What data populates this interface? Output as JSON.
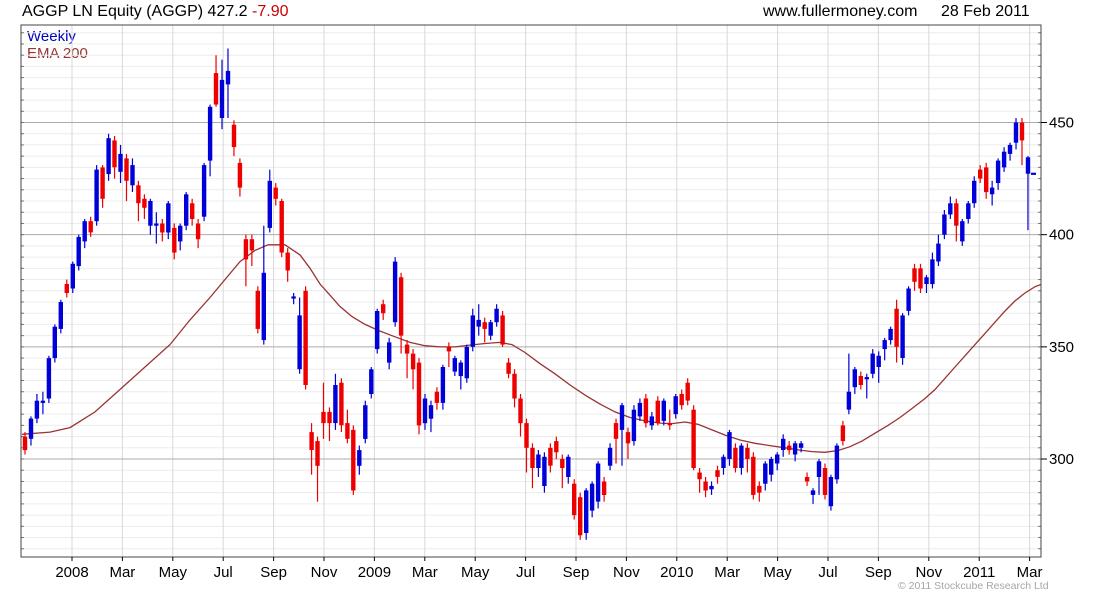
{
  "header": {
    "title_main": "AGGP LN Equity (AGGP) 427.2",
    "title_change": "-7.90",
    "site": "www.fullermoney.com",
    "date": "28 Feb 2011"
  },
  "legend": {
    "series": "Weekly",
    "overlay": "EMA 200"
  },
  "footer": {
    "copyright": "© 2011 Stockcube Research Ltd"
  },
  "colors": {
    "up": "#0000d9",
    "down": "#ee0000",
    "ema": "#993333",
    "legend_weekly": "#0000bb",
    "grid_minor": "#ececec",
    "grid_major": "#ababab",
    "grid_vertical": "#d9d9d9",
    "border": "#444444",
    "change_text": "#cc0000",
    "copyright_text": "#a6a6a6"
  },
  "chart_data": {
    "type": "candlestick",
    "period": "weekly",
    "title": "AGGP LN Equity (AGGP)",
    "last_price": 427.2,
    "change": -7.9,
    "date": "28 Feb 2011",
    "ylabel": "",
    "xlabel": "",
    "y_ticks": [
      450,
      400,
      350,
      300
    ],
    "y_minor_step": 5,
    "y_range": [
      257,
      492
    ],
    "x_tick_labels": [
      "2008",
      "Mar",
      "May",
      "Jul",
      "Sep",
      "Nov",
      "2009",
      "Mar",
      "May",
      "Jul",
      "Sep",
      "Nov",
      "2010",
      "Mar",
      "May",
      "Jul",
      "Sep",
      "Nov",
      "2011",
      "Mar"
    ],
    "weeks": [
      [
        310,
        312,
        302,
        304,
        0
      ],
      [
        309,
        319,
        306,
        318,
        1
      ],
      [
        318,
        329,
        316,
        326,
        1
      ],
      [
        325,
        330,
        320,
        326,
        1
      ],
      [
        327,
        346,
        325,
        345,
        1
      ],
      [
        345,
        360,
        343,
        359,
        1
      ],
      [
        358,
        371,
        356,
        370,
        1
      ],
      [
        378,
        380,
        372,
        374,
        0
      ],
      [
        376,
        388,
        374,
        387,
        1
      ],
      [
        386,
        400,
        384,
        399,
        1
      ],
      [
        397,
        407,
        394,
        406,
        1
      ],
      [
        406,
        408,
        399,
        401,
        0
      ],
      [
        406,
        431,
        404,
        429,
        1
      ],
      [
        430,
        431,
        412,
        416,
        0
      ],
      [
        427,
        445,
        424,
        443,
        1
      ],
      [
        442,
        444,
        425,
        430,
        0
      ],
      [
        428,
        440,
        423,
        436,
        1
      ],
      [
        434,
        436,
        415,
        424,
        0
      ],
      [
        422,
        434,
        419,
        431,
        1
      ],
      [
        422,
        424,
        406,
        414,
        0
      ],
      [
        416,
        418,
        407,
        412,
        0
      ],
      [
        404,
        416,
        400,
        415,
        1
      ],
      [
        404,
        410,
        396,
        405,
        1
      ],
      [
        405,
        407,
        397,
        401,
        0
      ],
      [
        401,
        415,
        398,
        414,
        1
      ],
      [
        403,
        405,
        389,
        392,
        0
      ],
      [
        397,
        405,
        393,
        404,
        1
      ],
      [
        404,
        419,
        402,
        418,
        1
      ],
      [
        414,
        416,
        404,
        407,
        0
      ],
      [
        405,
        407,
        394,
        398,
        0
      ],
      [
        408,
        432,
        406,
        431,
        1
      ],
      [
        433,
        458,
        426,
        457,
        1
      ],
      [
        472,
        480,
        457,
        458,
        0
      ],
      [
        452,
        478,
        447,
        469,
        1
      ],
      [
        467,
        483,
        452,
        473,
        1
      ],
      [
        449,
        451,
        435,
        439,
        0
      ],
      [
        432,
        434,
        417,
        421,
        0
      ],
      [
        398,
        400,
        377,
        389,
        0
      ],
      [
        398,
        400,
        386,
        393,
        0
      ],
      [
        375,
        377,
        356,
        358,
        0
      ],
      [
        353,
        404,
        351,
        383,
        1
      ],
      [
        403,
        429,
        401,
        424,
        1
      ],
      [
        421,
        423,
        413,
        416,
        0
      ],
      [
        415,
        416,
        390,
        392,
        0
      ],
      [
        392,
        394,
        379,
        384,
        0
      ],
      [
        371.5,
        374,
        369,
        372.5,
        1
      ],
      [
        340,
        372,
        338,
        364,
        1
      ],
      [
        375,
        377,
        331,
        333,
        0
      ],
      [
        312,
        316,
        293,
        304,
        0
      ],
      [
        308,
        310,
        281,
        297,
        0
      ],
      [
        321,
        334,
        309,
        316,
        0
      ],
      [
        321,
        323,
        308,
        316,
        0
      ],
      [
        316,
        338,
        313,
        333,
        1
      ],
      [
        334,
        336,
        312,
        315,
        0
      ],
      [
        316,
        322,
        307,
        309,
        0
      ],
      [
        313,
        315,
        284,
        286,
        0
      ],
      [
        297,
        306,
        293,
        304,
        1
      ],
      [
        309,
        326,
        307,
        324,
        1
      ],
      [
        329,
        341,
        327,
        340,
        1
      ],
      [
        349,
        367,
        347,
        366,
        1
      ],
      [
        369,
        371,
        362,
        365,
        0
      ],
      [
        343,
        354,
        340,
        352,
        1
      ],
      [
        361,
        390,
        359,
        388,
        1
      ],
      [
        381,
        383,
        347,
        355,
        0
      ],
      [
        351,
        353,
        336,
        347,
        0
      ],
      [
        347,
        349,
        331,
        340,
        0
      ],
      [
        343,
        345,
        311,
        315,
        0
      ],
      [
        316,
        329,
        313,
        327,
        1
      ],
      [
        318,
        326,
        312,
        324,
        1
      ],
      [
        330,
        332,
        322,
        325,
        0
      ],
      [
        325,
        342,
        322,
        341,
        1
      ],
      [
        350,
        352,
        341,
        348,
        0
      ],
      [
        339,
        346,
        337,
        345,
        1
      ],
      [
        337,
        344,
        331,
        343,
        1
      ],
      [
        336,
        351,
        334,
        350,
        1
      ],
      [
        350,
        367,
        348,
        364,
        1
      ],
      [
        359,
        369,
        355,
        362,
        1
      ],
      [
        361,
        363,
        352,
        358,
        0
      ],
      [
        355,
        362,
        353,
        361,
        1
      ],
      [
        361,
        369,
        359,
        367,
        1
      ],
      [
        364,
        366,
        350,
        351,
        0
      ],
      [
        343,
        345,
        336,
        338,
        0
      ],
      [
        338,
        340,
        323,
        327,
        0
      ],
      [
        327,
        329,
        310,
        316,
        0
      ],
      [
        316,
        318,
        294,
        305,
        0
      ],
      [
        305,
        307,
        287,
        296,
        0
      ],
      [
        296,
        304,
        292,
        302,
        1
      ],
      [
        288,
        303,
        285,
        301,
        1
      ],
      [
        305,
        307,
        294,
        297,
        0
      ],
      [
        308,
        310,
        300,
        303,
        0
      ],
      [
        300,
        302,
        287,
        296,
        0
      ],
      [
        292,
        302,
        289,
        301,
        1
      ],
      [
        289,
        291,
        273,
        275,
        0
      ],
      [
        283,
        285,
        264,
        266,
        0
      ],
      [
        267,
        287,
        264,
        286,
        1
      ],
      [
        277,
        290,
        274,
        289,
        1
      ],
      [
        281,
        299,
        278,
        298,
        1
      ],
      [
        290,
        292,
        281,
        284,
        0
      ],
      [
        297,
        307,
        295,
        305,
        1
      ],
      [
        316,
        318,
        298,
        309,
        0
      ],
      [
        313,
        325,
        297,
        324,
        1
      ],
      [
        312,
        314,
        300,
        307,
        0
      ],
      [
        308,
        324,
        306,
        322,
        1
      ],
      [
        319,
        327,
        317,
        325,
        1
      ],
      [
        327,
        329,
        314,
        316,
        0
      ],
      [
        315,
        321,
        313,
        319,
        1
      ],
      [
        326,
        328,
        315,
        316,
        0
      ],
      [
        317,
        327,
        315,
        326,
        1
      ],
      [
        316,
        322,
        313,
        315,
        0
      ],
      [
        320,
        329,
        318,
        328,
        1
      ],
      [
        329,
        331,
        322,
        324,
        0
      ],
      [
        334,
        336,
        324,
        326,
        0
      ],
      [
        322,
        324,
        295,
        296,
        0
      ],
      [
        294,
        296,
        285,
        291,
        0
      ],
      [
        290,
        292,
        283,
        286,
        0
      ],
      [
        286.5,
        290,
        284,
        288,
        1
      ],
      [
        295,
        297,
        289,
        292,
        0
      ],
      [
        296,
        302,
        293,
        301,
        1
      ],
      [
        300,
        313,
        297,
        312,
        1
      ],
      [
        305,
        307,
        294,
        296,
        0
      ],
      [
        296,
        307,
        293,
        306,
        1
      ],
      [
        305,
        307,
        294,
        300,
        0
      ],
      [
        301,
        303,
        282,
        284,
        0
      ],
      [
        288,
        290,
        281,
        285,
        0
      ],
      [
        289,
        299,
        286,
        298,
        1
      ],
      [
        293,
        301,
        290,
        300,
        1
      ],
      [
        298,
        303,
        295,
        302,
        1
      ],
      [
        304,
        311,
        301,
        309,
        1
      ],
      [
        306,
        308,
        302,
        304,
        0
      ],
      [
        302,
        308,
        299,
        307,
        1
      ],
      [
        305,
        308,
        303,
        307,
        1
      ],
      [
        292,
        294,
        288,
        290,
        0
      ],
      [
        284,
        287,
        280,
        286,
        1
      ],
      [
        292,
        300,
        284,
        299,
        1
      ],
      [
        296,
        298,
        282,
        284,
        0
      ],
      [
        279,
        293,
        277,
        292,
        1
      ],
      [
        291,
        307,
        289,
        306,
        1
      ],
      [
        315,
        317,
        306,
        308,
        0
      ],
      [
        322,
        347,
        320,
        330,
        1
      ],
      [
        332,
        341,
        329,
        340,
        1
      ],
      [
        337,
        339,
        331,
        333,
        0
      ],
      [
        335.5,
        338,
        327,
        336.5,
        1
      ],
      [
        338,
        349,
        336,
        347,
        1
      ],
      [
        341,
        348,
        334,
        346,
        1
      ],
      [
        349,
        354,
        344,
        353,
        1
      ],
      [
        353,
        359,
        351,
        358,
        1
      ],
      [
        367,
        371,
        343,
        350,
        0
      ],
      [
        345,
        365,
        342,
        364,
        1
      ],
      [
        366,
        377,
        364,
        376,
        1
      ],
      [
        385,
        387,
        375,
        379,
        0
      ],
      [
        385,
        387,
        374,
        376,
        0
      ],
      [
        378,
        382,
        374,
        381,
        1
      ],
      [
        378,
        392,
        376,
        389,
        1
      ],
      [
        388,
        400,
        386,
        396,
        1
      ],
      [
        400,
        411,
        398,
        409,
        1
      ],
      [
        409,
        417,
        407,
        414,
        1
      ],
      [
        414,
        416,
        397,
        404,
        0
      ],
      [
        397,
        407,
        395,
        406,
        1
      ],
      [
        407,
        415,
        405,
        414,
        1
      ],
      [
        414,
        426,
        412,
        424,
        1
      ],
      [
        429,
        431,
        423,
        425,
        0
      ],
      [
        430,
        432,
        416,
        419,
        0
      ],
      [
        418,
        424,
        413,
        421,
        1
      ],
      [
        423,
        434,
        420,
        433,
        1
      ],
      [
        430,
        439,
        428,
        437,
        1
      ],
      [
        436,
        441,
        433,
        440,
        1
      ],
      [
        441,
        452,
        438,
        450,
        1
      ],
      [
        450,
        452,
        431,
        442,
        0
      ],
      [
        434.5,
        435,
        402,
        427.2,
        1
      ]
    ],
    "ema": {
      "label": "EMA 200",
      "points": [
        [
          22,
          311
        ],
        [
          50,
          312
        ],
        [
          70,
          314
        ],
        [
          95,
          321
        ],
        [
          120,
          331
        ],
        [
          145,
          341
        ],
        [
          170,
          351
        ],
        [
          190,
          362
        ],
        [
          210,
          372
        ],
        [
          225,
          380
        ],
        [
          240,
          388
        ],
        [
          255,
          393
        ],
        [
          268,
          395.5
        ],
        [
          285,
          395.5
        ],
        [
          300,
          391
        ],
        [
          310,
          385
        ],
        [
          320,
          378
        ],
        [
          330,
          373
        ],
        [
          340,
          368
        ],
        [
          352,
          363.5
        ],
        [
          365,
          360
        ],
        [
          380,
          357
        ],
        [
          395,
          354.5
        ],
        [
          410,
          352
        ],
        [
          425,
          350.5
        ],
        [
          440,
          350
        ],
        [
          455,
          350
        ],
        [
          470,
          350.8
        ],
        [
          485,
          351.5
        ],
        [
          500,
          352
        ],
        [
          512,
          351
        ],
        [
          525,
          347.5
        ],
        [
          540,
          342.5
        ],
        [
          555,
          338
        ],
        [
          570,
          333
        ],
        [
          585,
          328.5
        ],
        [
          600,
          324.5
        ],
        [
          615,
          321
        ],
        [
          630,
          318.5
        ],
        [
          645,
          317
        ],
        [
          660,
          316
        ],
        [
          672,
          315.8
        ],
        [
          685,
          316.5
        ],
        [
          698,
          315.5
        ],
        [
          712,
          313
        ],
        [
          726,
          310.5
        ],
        [
          740,
          308.5
        ],
        [
          755,
          307
        ],
        [
          770,
          306
        ],
        [
          785,
          305
        ],
        [
          800,
          304
        ],
        [
          812,
          303.3
        ],
        [
          825,
          303
        ],
        [
          838,
          303.8
        ],
        [
          850,
          305.5
        ],
        [
          862,
          308
        ],
        [
          875,
          311.5
        ],
        [
          888,
          315
        ],
        [
          900,
          318.5
        ],
        [
          912,
          322.5
        ],
        [
          925,
          327
        ],
        [
          935,
          331
        ],
        [
          945,
          336
        ],
        [
          955,
          341
        ],
        [
          965,
          346
        ],
        [
          975,
          351
        ],
        [
          985,
          356
        ],
        [
          995,
          361
        ],
        [
          1005,
          366
        ],
        [
          1015,
          370.5
        ],
        [
          1025,
          374
        ],
        [
          1035,
          376.8
        ],
        [
          1041,
          377.8
        ]
      ]
    },
    "last_marker_price": 427.2,
    "legend_position": "top-left",
    "grid": true
  }
}
